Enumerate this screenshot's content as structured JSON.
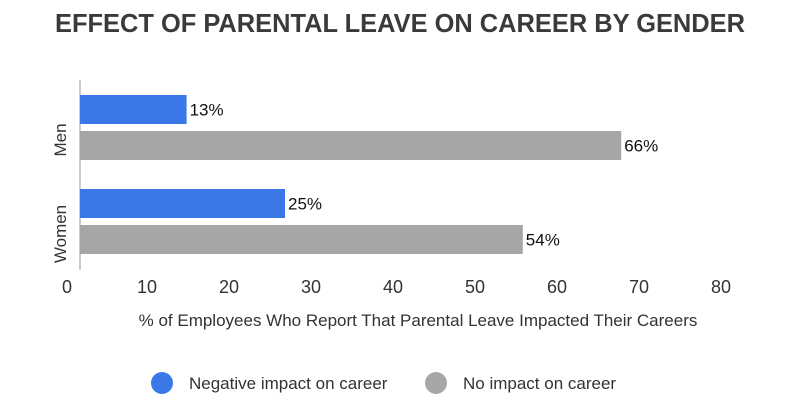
{
  "chart_data": {
    "type": "bar",
    "orientation": "horizontal",
    "title": "EFFECT OF PARENTAL LEAVE ON CAREER BY GENDER",
    "xlabel": "% of Employees Who Report That Parental Leave Impacted Their Careers",
    "ylabel": "",
    "categories": [
      "Men",
      "Women"
    ],
    "series": [
      {
        "name": "Negative impact on career",
        "color": "#3b78e7",
        "values": [
          13,
          25
        ],
        "labels": [
          "13%",
          "25%"
        ]
      },
      {
        "name": "No impact on career",
        "color": "#a6a6a6",
        "values": [
          66,
          54
        ],
        "labels": [
          "66%",
          "54%"
        ]
      }
    ],
    "xlim": [
      0,
      80
    ],
    "xticks": [
      "0",
      "10",
      "20",
      "30",
      "40",
      "50",
      "60",
      "70",
      "80"
    ],
    "grid": false,
    "legend": "bottom"
  }
}
